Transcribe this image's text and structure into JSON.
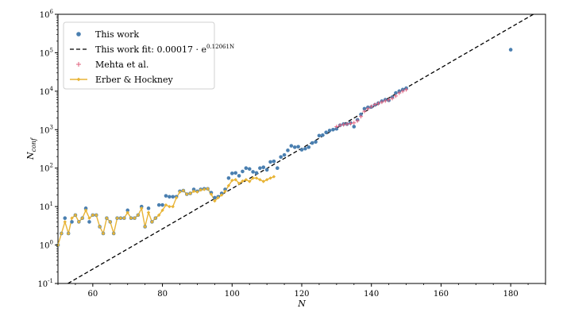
{
  "chart_data": {
    "type": "scatter",
    "title": "",
    "xlabel": "N",
    "ylabel": "N_conf",
    "xlim": [
      50,
      190
    ],
    "ylim_exponents": [
      -1,
      6
    ],
    "yscale": "log",
    "x_ticks": [
      60,
      80,
      100,
      120,
      140,
      160,
      180
    ],
    "y_tick_labels": [
      "10^-1",
      "10^0",
      "10^1",
      "10^2",
      "10^3",
      "10^4",
      "10^5",
      "10^6"
    ],
    "legend_position": "top-left",
    "legend": [
      {
        "key": "this_work",
        "label": "This work"
      },
      {
        "key": "fit",
        "label": "This work fit: 0.00017 · e^0.12061N"
      },
      {
        "key": "mehta",
        "label": "Mehta et al."
      },
      {
        "key": "erber",
        "label": "Erber & Hockney"
      }
    ],
    "colors": {
      "this_work": "#4a7fb0",
      "fit": "#000000",
      "mehta": "#e0607e",
      "erber": "#e8b436"
    },
    "fit": {
      "a": 0.00017,
      "b": 0.12061
    },
    "series": [
      {
        "key": "this_work",
        "x": [
          50,
          51,
          52,
          53,
          54,
          55,
          56,
          57,
          58,
          59,
          60,
          61,
          62,
          63,
          64,
          65,
          66,
          67,
          68,
          69,
          70,
          71,
          72,
          73,
          74,
          75,
          76,
          77,
          78,
          79,
          80,
          81,
          82,
          83,
          84,
          85,
          86,
          87,
          88,
          89,
          90,
          91,
          92,
          93,
          94,
          95,
          96,
          97,
          98,
          99,
          100,
          101,
          102,
          103,
          104,
          105,
          106,
          107,
          108,
          109,
          110,
          111,
          112,
          113,
          114,
          115,
          116,
          117,
          118,
          119,
          120,
          121,
          122,
          123,
          124,
          125,
          126,
          127,
          128,
          129,
          130,
          131,
          132,
          133,
          134,
          135,
          136,
          137,
          138,
          139,
          140,
          141,
          142,
          143,
          144,
          145,
          146,
          147,
          148,
          149,
          150,
          180
        ],
        "y": [
          1,
          2,
          5,
          2,
          4,
          6,
          4,
          5,
          9,
          4,
          6,
          6,
          3,
          2,
          5,
          4,
          2,
          5,
          5,
          5,
          8,
          5,
          5,
          6,
          10,
          3,
          9,
          4,
          5,
          11,
          11,
          19,
          18,
          18,
          18,
          25,
          26,
          21,
          22,
          28,
          25,
          28,
          29,
          29,
          23,
          17,
          18,
          22,
          28,
          55,
          73,
          75,
          63,
          82,
          100,
          95,
          80,
          75,
          100,
          105,
          90,
          145,
          150,
          100,
          195,
          220,
          290,
          380,
          350,
          360,
          300,
          320,
          350,
          450,
          480,
          700,
          720,
          850,
          950,
          1000,
          1050,
          1300,
          1400,
          1400,
          1500,
          1200,
          1800,
          2500,
          3500,
          3800,
          3900,
          4400,
          4900,
          5500,
          6000,
          5800,
          7000,
          9000,
          10000,
          11000,
          12000,
          120000
        ]
      },
      {
        "key": "mehta",
        "x": [
          130,
          131,
          132,
          133,
          134,
          135,
          136,
          137,
          138,
          139,
          140,
          141,
          142,
          143,
          144,
          145,
          146,
          147,
          148,
          149,
          150
        ],
        "y": [
          1200,
          1300,
          1350,
          1400,
          1450,
          1500,
          1700,
          2200,
          3000,
          3500,
          4000,
          4500,
          4800,
          5200,
          5600,
          6000,
          6500,
          7500,
          9000,
          10000,
          11000
        ]
      },
      {
        "key": "erber",
        "x": [
          50,
          51,
          52,
          53,
          54,
          55,
          56,
          57,
          58,
          59,
          60,
          61,
          62,
          63,
          64,
          65,
          66,
          67,
          68,
          69,
          70,
          71,
          72,
          73,
          74,
          75,
          76,
          77,
          78,
          79,
          80,
          81,
          82,
          83,
          84,
          85,
          86,
          87,
          88,
          89,
          90,
          91,
          92,
          93,
          94,
          95,
          96,
          97,
          98,
          99,
          100,
          101,
          102,
          103,
          104,
          105,
          106,
          107,
          108,
          109,
          110,
          111,
          112
        ],
        "y": [
          1,
          2,
          4,
          2,
          5,
          6,
          4,
          5,
          8,
          5,
          6,
          6,
          3,
          2,
          5,
          4,
          2,
          5,
          5,
          5,
          7,
          5,
          5,
          6,
          9,
          3,
          7,
          4,
          5,
          6,
          8,
          11,
          10,
          10,
          17,
          24,
          26,
          21,
          22,
          25,
          24,
          27,
          28,
          29,
          21,
          14,
          17,
          20,
          25,
          35,
          48,
          50,
          40,
          46,
          50,
          45,
          55,
          55,
          50,
          45,
          50,
          55,
          60
        ]
      }
    ]
  }
}
